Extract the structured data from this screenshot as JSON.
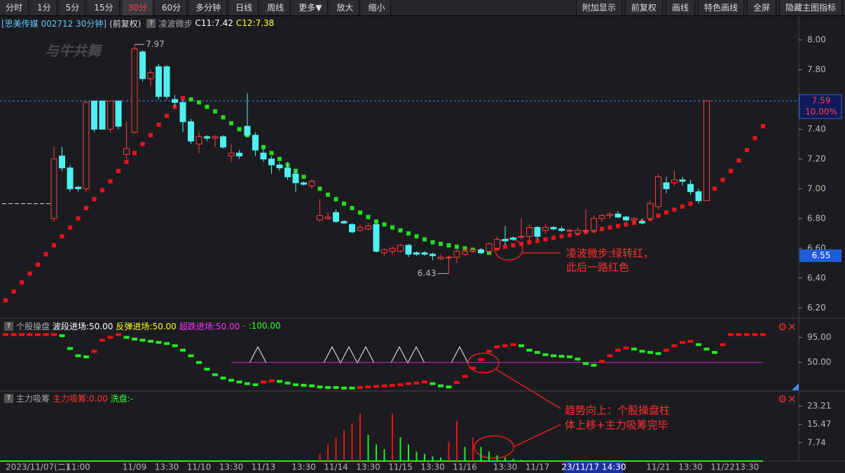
{
  "toolbar": {
    "left": [
      "分时",
      "1分",
      "5分",
      "15分",
      "30分",
      "60分",
      "多分钟",
      "日线",
      "周线",
      "更多▼",
      "放大",
      "缩小"
    ],
    "active": 4,
    "right": [
      "附加显示",
      "前复权",
      "画线",
      "特色画线",
      "全屏",
      "隐藏主图指标"
    ]
  },
  "header": {
    "security": "[思美传媒 002712 30分钟]",
    "adjust": "(前复权)",
    "help": "?",
    "indicator": "凌波微步",
    "c11": "C11:7.42",
    "c12": "C12:7.38"
  },
  "watermark": "与牛共舞",
  "annotations": [
    [
      "凌波微步:绿转红，",
      "此后一路红色"
    ],
    [
      "趋势向上：个股操盘柱",
      "体上移+主力吸筹完毕"
    ]
  ],
  "chart_data": [
    {
      "type": "candlestick",
      "cursor_index": 73,
      "categories": [
        "2023/11/07(二)",
        null,
        null,
        null,
        null,
        null,
        null,
        null,
        null,
        "11:00",
        null,
        null,
        null,
        null,
        null,
        null,
        "11/09",
        null,
        null,
        null,
        "13:30",
        null,
        null,
        null,
        "11/10",
        null,
        null,
        null,
        "13:30",
        null,
        null,
        null,
        "11/13",
        null,
        null,
        null,
        null,
        "13:30",
        null,
        null,
        null,
        "11/14",
        null,
        null,
        null,
        "13:30",
        null,
        null,
        null,
        "11/15",
        null,
        null,
        null,
        "13:30",
        null,
        null,
        null,
        "11/16",
        null,
        null,
        null,
        null,
        "13:30",
        null,
        null,
        null,
        "11/17",
        null,
        null,
        null,
        null,
        null,
        null,
        "23/11/17 14:30",
        null,
        null,
        null,
        null,
        null,
        null,
        null,
        "11/21",
        null,
        null,
        null,
        "13:30",
        null,
        null,
        null,
        "11/22",
        null,
        null,
        "13:30",
        null,
        null
      ],
      "candles": [
        null,
        null,
        null,
        null,
        null,
        null,
        [
          6.8,
          7.28,
          6.78,
          7.2
        ],
        [
          7.22,
          7.28,
          7.12,
          7.14
        ],
        [
          7.14,
          7.16,
          6.98,
          7.0
        ],
        [
          7.01,
          7.02,
          6.98,
          7.0
        ],
        [
          7.0,
          7.59,
          6.98,
          7.58
        ],
        [
          7.59,
          7.59,
          7.38,
          7.4
        ],
        [
          7.59,
          7.59,
          7.4,
          7.4
        ],
        [
          7.4,
          7.59,
          7.38,
          7.59
        ],
        [
          7.59,
          7.59,
          7.4,
          7.42
        ],
        [
          7.23,
          7.45,
          7.2,
          7.27
        ],
        [
          7.38,
          7.97,
          7.37,
          7.94
        ],
        [
          7.92,
          7.93,
          7.72,
          7.74
        ],
        [
          7.74,
          7.8,
          7.69,
          7.78
        ],
        [
          7.82,
          7.84,
          7.6,
          7.62
        ],
        [
          7.82,
          7.83,
          7.6,
          7.62
        ],
        [
          7.6,
          7.63,
          7.55,
          7.58
        ],
        [
          7.58,
          7.6,
          7.38,
          7.45
        ],
        [
          7.45,
          7.47,
          7.3,
          7.32
        ],
        [
          7.3,
          7.38,
          7.24,
          7.35
        ],
        [
          7.35,
          7.36,
          7.32,
          7.34
        ],
        [
          7.34,
          7.36,
          7.28,
          7.35
        ],
        [
          7.35,
          7.36,
          7.27,
          7.28
        ],
        [
          7.22,
          7.3,
          7.18,
          7.24
        ],
        [
          7.24,
          7.26,
          7.2,
          7.22
        ],
        [
          7.42,
          7.64,
          7.35,
          7.36
        ],
        [
          7.36,
          7.38,
          7.22,
          7.26
        ],
        [
          7.24,
          7.27,
          7.18,
          7.2
        ],
        [
          7.2,
          7.22,
          7.1,
          7.16
        ],
        [
          7.16,
          7.18,
          7.12,
          7.14
        ],
        [
          7.14,
          7.18,
          7.06,
          7.08
        ],
        [
          7.1,
          7.12,
          6.98,
          7.04
        ],
        [
          7.04,
          7.05,
          7.02,
          7.03
        ],
        [
          7.02,
          7.06,
          7.0,
          7.05
        ],
        [
          6.79,
          6.93,
          6.78,
          6.82
        ],
        [
          6.8,
          6.84,
          6.79,
          6.81
        ],
        [
          6.84,
          6.86,
          6.77,
          6.78
        ],
        [
          6.78,
          6.79,
          6.76,
          6.77
        ],
        [
          6.76,
          6.77,
          6.7,
          6.71
        ],
        [
          6.72,
          6.76,
          6.71,
          6.74
        ],
        [
          6.73,
          6.77,
          6.72,
          6.75
        ],
        [
          6.76,
          6.77,
          6.57,
          6.58
        ],
        [
          6.57,
          6.6,
          6.55,
          6.59
        ],
        [
          6.58,
          6.61,
          6.56,
          6.6
        ],
        [
          6.58,
          6.63,
          6.57,
          6.62
        ],
        [
          6.62,
          6.63,
          6.54,
          6.56
        ],
        [
          6.57,
          6.58,
          6.55,
          6.56
        ],
        [
          6.57,
          6.58,
          6.55,
          6.56
        ],
        [
          6.56,
          6.57,
          6.52,
          6.55
        ],
        [
          6.53,
          6.56,
          6.52,
          6.54
        ],
        [
          6.54,
          6.55,
          6.43,
          6.54
        ],
        [
          6.54,
          6.6,
          6.5,
          6.58
        ],
        [
          6.56,
          6.6,
          6.55,
          6.58
        ],
        [
          6.58,
          6.6,
          6.57,
          6.59
        ],
        [
          6.59,
          6.6,
          6.56,
          6.57
        ],
        [
          6.58,
          6.64,
          6.56,
          6.63
        ],
        [
          6.6,
          6.68,
          6.58,
          6.66
        ],
        [
          6.66,
          6.75,
          6.62,
          6.65
        ],
        [
          6.67,
          6.68,
          6.65,
          6.66
        ],
        [
          6.68,
          6.8,
          6.66,
          6.68
        ],
        [
          6.68,
          6.76,
          6.65,
          6.74
        ],
        [
          6.74,
          6.75,
          6.66,
          6.68
        ],
        [
          6.72,
          6.76,
          6.7,
          6.74
        ],
        [
          6.74,
          6.75,
          6.72,
          6.73
        ],
        [
          6.73,
          6.75,
          6.71,
          6.72
        ],
        [
          6.72,
          6.73,
          6.71,
          6.72
        ],
        [
          6.7,
          6.74,
          6.69,
          6.72
        ],
        [
          6.72,
          6.86,
          6.7,
          6.72
        ],
        [
          6.72,
          6.82,
          6.7,
          6.8
        ],
        [
          6.8,
          6.83,
          6.78,
          6.82
        ],
        [
          6.82,
          6.84,
          6.8,
          6.83
        ],
        [
          6.83,
          6.85,
          6.8,
          6.81
        ],
        [
          6.81,
          6.82,
          6.78,
          6.79
        ],
        [
          6.79,
          6.81,
          6.77,
          6.8
        ],
        [
          6.78,
          6.8,
          6.76,
          6.77
        ],
        [
          6.8,
          6.92,
          6.78,
          6.9
        ],
        [
          6.88,
          7.1,
          6.86,
          7.08
        ],
        [
          7.04,
          7.08,
          6.97,
          7.0
        ],
        [
          7.04,
          7.12,
          7.02,
          7.06
        ],
        [
          7.06,
          7.08,
          7.02,
          7.05
        ],
        [
          7.03,
          7.06,
          6.96,
          6.98
        ],
        [
          6.98,
          7.0,
          6.9,
          6.92
        ],
        [
          6.92,
          7.59,
          6.92,
          7.59
        ],
        null,
        null,
        null,
        null,
        null,
        null,
        null
      ],
      "series": [
        {
          "values": [
            6.25,
            6.31,
            6.37,
            6.43,
            6.49,
            6.56,
            6.62,
            6.68,
            6.74,
            6.8,
            6.87,
            6.93,
            6.99,
            7.05,
            7.12,
            7.18,
            7.24,
            7.3,
            7.36,
            7.43,
            7.49,
            7.55,
            7.61,
            7.6,
            7.58,
            7.55,
            7.52,
            7.48,
            7.44,
            7.4,
            7.36,
            7.32,
            7.28,
            7.24,
            7.2,
            7.16,
            7.12,
            7.08,
            7.04,
            7.0,
            6.96,
            6.93,
            6.9,
            6.87,
            6.84,
            6.81,
            6.78,
            6.76,
            6.74,
            6.72,
            6.7,
            6.68,
            6.66,
            6.64,
            6.63,
            6.62,
            6.61,
            6.6,
            6.59,
            6.58,
            6.57,
            6.6,
            6.61,
            6.62,
            6.63,
            6.64,
            6.65,
            6.66,
            6.67,
            6.68,
            6.69,
            6.7,
            6.71,
            6.72,
            6.73,
            6.74,
            6.75,
            6.76,
            6.77,
            6.78,
            6.8,
            6.82,
            6.84,
            6.86,
            6.88,
            6.9,
            6.93,
            6.96,
            7.0,
            7.06,
            7.12,
            7.19,
            7.26,
            7.34,
            7.42
          ],
          "color_up": "#e8141e",
          "color_down": "#22dd22"
        }
      ],
      "colors": {
        "up": "#ff3c3c",
        "down": "#4ff0f0"
      },
      "ylim": [
        6.14,
        8.08
      ],
      "yticks": [
        {
          "value": 6.2,
          "label": "6.20"
        },
        {
          "value": 6.4,
          "label": "6.40"
        },
        {
          "value": 6.6,
          "label": "6.60"
        },
        {
          "value": 6.8,
          "label": "6.80"
        },
        {
          "value": 7.0,
          "label": "7.00"
        },
        {
          "value": 7.2,
          "label": "7.20"
        },
        {
          "value": 7.4,
          "label": "7.40"
        },
        {
          "value": 7.6,
          "label": "7.60"
        },
        {
          "value": 7.8,
          "label": "7.80"
        },
        {
          "value": 8.0,
          "label": "8.00"
        }
      ],
      "high_label": 7.97,
      "low_label": 6.43,
      "last_price": 7.59,
      "last_change": "10.00%",
      "cursor_price": 6.55,
      "prev_close": 6.9
    },
    {
      "type": "step-bars",
      "title": "个股操盘",
      "help": "?",
      "legend": [
        "波段进场:50.00",
        "反弹进场:50.00",
        "超跌进场:50.00",
        "-",
        ":100.00"
      ],
      "legend_colors": [
        "#ffffff",
        "#ffff33",
        "#ff33ff",
        "#ff3333",
        "#33ff33"
      ],
      "values": [
        100,
        100,
        100,
        100,
        100,
        100,
        100,
        98,
        75,
        62,
        60,
        70,
        90,
        95,
        100,
        95,
        92,
        90,
        88,
        86,
        84,
        80,
        72,
        62,
        50,
        38,
        28,
        22,
        18,
        15,
        12,
        10,
        15,
        17,
        16,
        13,
        10,
        9,
        8,
        6,
        5,
        5,
        4,
        4,
        5,
        6,
        7,
        8,
        9,
        10,
        12,
        13,
        15,
        12,
        8,
        6,
        14,
        25,
        40,
        55,
        70,
        78,
        80,
        82,
        80,
        72,
        68,
        64,
        62,
        61,
        60,
        56,
        48,
        45,
        52,
        62,
        72,
        76,
        74,
        70,
        68,
        66,
        72,
        80,
        86,
        88,
        82,
        74,
        68,
        82,
        100,
        100,
        100,
        100,
        100
      ],
      "color_up": "#ee1111",
      "color_down": "#22ee22",
      "entry_level": 50,
      "entry_start": 28,
      "entry_color": "#d020d0",
      "ylim": [
        0,
        127
      ],
      "yticks": [
        {
          "value": 50,
          "label": "50.00"
        },
        {
          "value": 95,
          "label": "95.00"
        }
      ]
    },
    {
      "type": "volume-lines",
      "title": "主力吸筹",
      "help": "?",
      "legend": [
        "主力吸筹:0.00",
        "洗盘:-"
      ],
      "legend_colors": [
        "#ff3333",
        "#33ff33"
      ],
      "values": [
        0,
        0,
        0,
        0,
        0,
        0,
        0,
        0,
        0,
        0,
        0,
        0,
        0,
        0,
        0,
        0,
        0,
        0,
        0,
        0,
        0,
        0,
        0,
        0,
        0,
        0,
        0,
        0,
        0,
        0,
        0,
        0,
        0,
        0,
        0,
        0,
        0,
        0,
        0,
        3,
        7,
        10,
        13,
        16,
        20,
        11,
        7,
        5,
        20,
        10,
        7,
        4,
        3,
        2,
        1.5,
        8,
        17,
        6,
        10,
        6,
        4,
        2.5,
        1.5,
        1,
        0.5,
        0,
        0,
        0,
        0,
        0,
        0,
        0,
        0,
        0,
        0,
        0,
        0,
        0,
        0,
        0,
        0,
        0,
        0,
        0,
        0,
        0,
        0,
        0,
        0,
        0,
        0,
        0,
        0,
        0,
        0
      ],
      "color_up": "#ee1111",
      "color_down": "#22ee22",
      "ylim": [
        0,
        26
      ],
      "yticks": [
        7.74,
        15.47,
        23.21
      ]
    }
  ]
}
